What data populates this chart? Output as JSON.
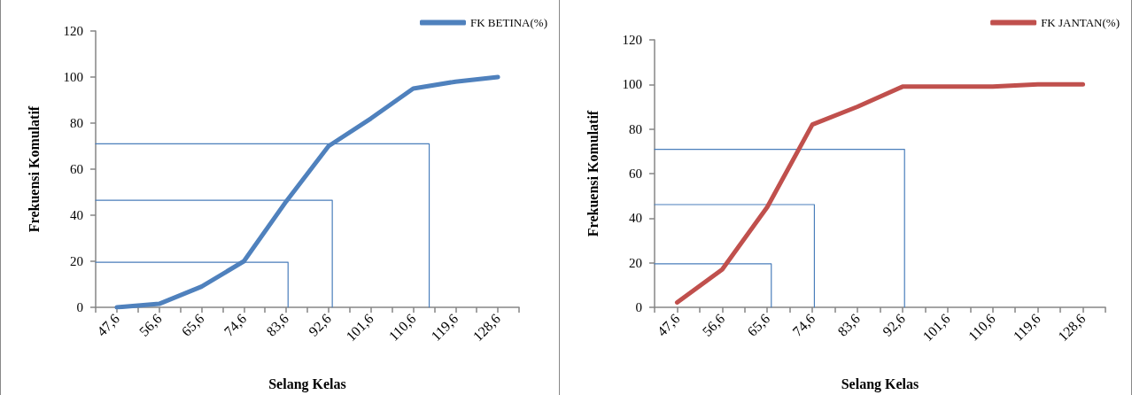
{
  "chart_data": [
    {
      "type": "line",
      "xlabel": "Selang Kelas",
      "ylabel": "Frekuensi Komulatif",
      "legend": "top right",
      "marker": "none",
      "line_style": "solid",
      "xlim": [
        43.1,
        133.1
      ],
      "ylim": [
        0,
        120
      ],
      "yticks": [
        0,
        20,
        40,
        60,
        80,
        100,
        120
      ],
      "xticks": [
        {
          "value": 43.1,
          "label": null
        },
        {
          "value": 47.6,
          "label": "47,6"
        },
        {
          "value": 52.1,
          "label": null
        },
        {
          "value": 56.6,
          "label": "56,6"
        },
        {
          "value": 61.1,
          "label": null
        },
        {
          "value": 65.6,
          "label": "65,6"
        },
        {
          "value": 70.1,
          "label": null
        },
        {
          "value": 74.6,
          "label": "74,6"
        },
        {
          "value": 79.1,
          "label": null
        },
        {
          "value": 83.6,
          "label": "83,6"
        },
        {
          "value": 88.1,
          "label": null
        },
        {
          "value": 92.6,
          "label": "92,6"
        },
        {
          "value": 97.1,
          "label": null
        },
        {
          "value": 101.6,
          "label": "101,6"
        },
        {
          "value": 106.1,
          "label": null
        },
        {
          "value": 110.6,
          "label": "110,6"
        },
        {
          "value": 115.1,
          "label": null
        },
        {
          "value": 119.6,
          "label": "119,6"
        },
        {
          "value": 124.1,
          "label": null
        },
        {
          "value": 128.6,
          "label": "128,6"
        },
        {
          "value": 133.1,
          "label": null
        }
      ],
      "x": [
        47.6,
        56.6,
        65.6,
        74.6,
        83.6,
        92.6,
        101.6,
        110.6,
        119.6,
        128.6
      ],
      "series": [
        {
          "name": "FK BETINA(%)",
          "color": "#4f81bd",
          "values": [
            0,
            1.5,
            9,
            20,
            46,
            70,
            82,
            95,
            98,
            100
          ]
        },
        {
          "type": "line",
          "color": "#4a7ebb",
          "x": [
            43.1,
            84,
            84
          ],
          "values": [
            19.6,
            19.6,
            0
          ]
        },
        {
          "type": "line",
          "color": "#4a7ebb",
          "x": [
            43.1,
            93.4,
            93.4
          ],
          "values": [
            46.5,
            46.5,
            0
          ]
        },
        {
          "type": "line",
          "color": "#4a7ebb",
          "x": [
            43.1,
            114,
            114
          ],
          "values": [
            71,
            71,
            0
          ]
        }
      ]
    },
    {
      "type": "line",
      "xlabel": "Selang Kelas",
      "ylabel": "Frekuensi Komulatif",
      "legend": "top right",
      "marker": "none",
      "line_style": "solid",
      "xlim": [
        43.1,
        133.1
      ],
      "ylim": [
        0,
        120
      ],
      "yticks": [
        0,
        20,
        40,
        60,
        80,
        100,
        120
      ],
      "xticks": [
        {
          "value": 43.1,
          "label": null
        },
        {
          "value": 47.6,
          "label": "47,6"
        },
        {
          "value": 52.1,
          "label": null
        },
        {
          "value": 56.6,
          "label": "56,6"
        },
        {
          "value": 61.1,
          "label": null
        },
        {
          "value": 65.6,
          "label": "65,6"
        },
        {
          "value": 70.1,
          "label": null
        },
        {
          "value": 74.6,
          "label": "74,6"
        },
        {
          "value": 79.1,
          "label": null
        },
        {
          "value": 83.6,
          "label": "83,6"
        },
        {
          "value": 88.1,
          "label": null
        },
        {
          "value": 92.6,
          "label": "92,6"
        },
        {
          "value": 97.1,
          "label": null
        },
        {
          "value": 101.6,
          "label": "101,6"
        },
        {
          "value": 106.1,
          "label": null
        },
        {
          "value": 110.6,
          "label": "110,6"
        },
        {
          "value": 115.1,
          "label": null
        },
        {
          "value": 119.6,
          "label": "119,6"
        },
        {
          "value": 124.1,
          "label": null
        },
        {
          "value": 128.6,
          "label": "128,6"
        },
        {
          "value": 133.1,
          "label": null
        }
      ],
      "x": [
        47.6,
        56.6,
        65.6,
        74.6,
        83.6,
        92.6,
        101.6,
        110.6,
        119.6,
        128.6
      ],
      "series": [
        {
          "name": "FK JANTAN(%)",
          "color": "#c0504d",
          "values": [
            2.2,
            17,
            45,
            82,
            90,
            99,
            99,
            99,
            100,
            100
          ]
        },
        {
          "type": "line",
          "color": "#4a7ebb",
          "x": [
            43.1,
            66.4,
            66.4
          ],
          "values": [
            19.5,
            19.5,
            0
          ]
        },
        {
          "type": "line",
          "color": "#4a7ebb",
          "x": [
            43.1,
            75,
            75
          ],
          "values": [
            46.1,
            46.1,
            0
          ]
        },
        {
          "type": "line",
          "color": "#4a7ebb",
          "x": [
            43.1,
            93,
            93
          ],
          "values": [
            70.9,
            70.9,
            0
          ]
        }
      ]
    }
  ]
}
